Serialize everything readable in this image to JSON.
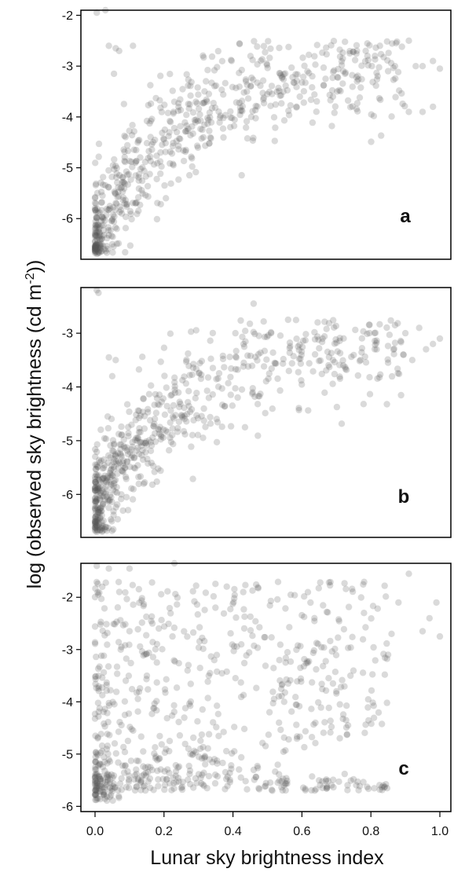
{
  "chart_data": {
    "type": "scatter",
    "ylabel": "log (observed sky brightness (cd m",
    "ylabel_sup": "-2",
    "ylabel_end": "))",
    "xlabel": "Lunar sky brightness index",
    "xlim": [
      0,
      1
    ],
    "xticks": [
      "0.0",
      "0.2",
      "0.4",
      "0.6",
      "0.8",
      "1.0"
    ],
    "point_color": "#555555",
    "panels": [
      {
        "label": "a",
        "ylim": [
          -6.8,
          -1.9
        ],
        "yticks": [
          -2,
          -3,
          -4,
          -5,
          -6
        ],
        "outliers": [
          [
            0.005,
            -1.95
          ],
          [
            0.03,
            -1.9
          ],
          [
            0.04,
            -2.6
          ],
          [
            0.06,
            -2.65
          ],
          [
            0.07,
            -2.7
          ],
          [
            0.11,
            -2.6
          ],
          [
            0.055,
            -3.15
          ],
          [
            0.79,
            -2.8
          ],
          [
            0.87,
            -3.0
          ],
          [
            0.91,
            -2.5
          ],
          [
            0.93,
            -3.0
          ],
          [
            0.95,
            -3.0
          ],
          [
            0.98,
            -2.9
          ],
          [
            1.0,
            -3.05
          ],
          [
            0.91,
            -3.9
          ],
          [
            0.95,
            -3.9
          ],
          [
            0.98,
            -3.8
          ],
          [
            0.85,
            -3.1
          ],
          [
            0.72,
            -3.1
          ],
          [
            0.69,
            -3.6
          ],
          [
            0.76,
            -3.3
          ],
          [
            0.63,
            -3.2
          ]
        ],
        "cluster": {
          "n": 660,
          "a": -6.4,
          "b": 3.5,
          "k": 4.0,
          "spread": 0.6
        }
      },
      {
        "label": "b",
        "ylim": [
          -6.8,
          -2.15
        ],
        "yticks": [
          -3,
          -4,
          -5,
          -6
        ],
        "outliers": [
          [
            0.005,
            -2.2
          ],
          [
            0.01,
            -2.25
          ],
          [
            0.04,
            -3.45
          ],
          [
            0.06,
            -3.5
          ],
          [
            0.05,
            -3.8
          ],
          [
            0.46,
            -2.45
          ],
          [
            0.56,
            -2.75
          ],
          [
            0.87,
            -2.85
          ],
          [
            0.9,
            -3.0
          ],
          [
            0.94,
            -2.9
          ],
          [
            0.98,
            -3.2
          ],
          [
            1.0,
            -3.1
          ],
          [
            0.85,
            -3.55
          ],
          [
            0.92,
            -3.5
          ],
          [
            0.96,
            -3.3
          ],
          [
            0.69,
            -3.5
          ],
          [
            0.72,
            -3.6
          ],
          [
            0.77,
            -3.5
          ],
          [
            0.66,
            -3.1
          ]
        ],
        "cluster": {
          "n": 660,
          "a": -6.4,
          "b": 3.3,
          "k": 4.2,
          "spread": 0.55
        }
      },
      {
        "label": "c",
        "ylim": [
          -6.1,
          -1.35
        ],
        "yticks": [
          -2,
          -3,
          -4,
          -5,
          -6
        ],
        "outliers": [
          [
            0.005,
            -1.4
          ],
          [
            0.04,
            -1.45
          ],
          [
            0.1,
            -1.45
          ],
          [
            0.23,
            -1.35
          ],
          [
            0.91,
            -1.55
          ],
          [
            0.99,
            -2.1
          ],
          [
            0.97,
            -2.4
          ],
          [
            1.0,
            -2.75
          ],
          [
            0.95,
            -2.65
          ],
          [
            0.88,
            -2.1
          ],
          [
            0.86,
            -2.7
          ],
          [
            0.85,
            -3.1
          ],
          [
            0.78,
            -2.3
          ],
          [
            0.7,
            -3.8
          ],
          [
            0.71,
            -4.05
          ],
          [
            0.69,
            -3.65
          ]
        ],
        "cluster": {
          "n": 780,
          "uniform": true
        }
      }
    ]
  }
}
